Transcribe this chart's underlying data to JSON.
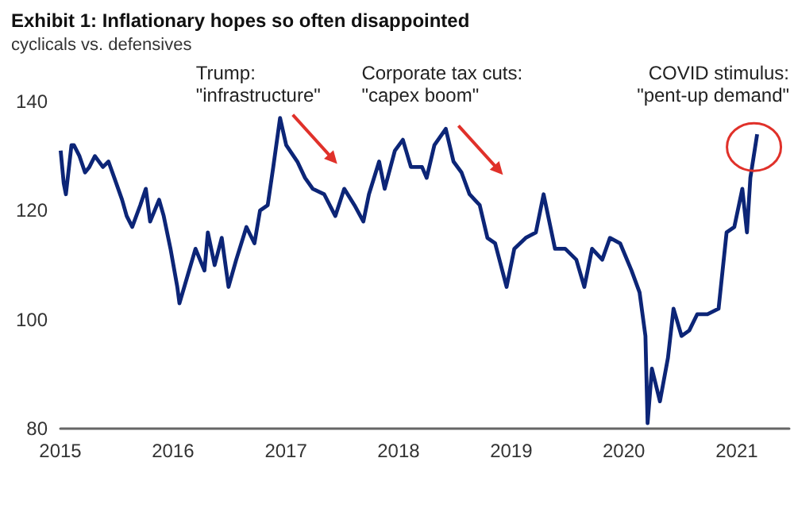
{
  "chart_data": {
    "type": "line",
    "title": "Exhibit 1: Inflationary hopes so often disappointed",
    "subtitle": "cyclicals vs. defensives",
    "x": [
      "2015-01-02",
      "2015-01-12",
      "2015-01-19",
      "2015-02-06",
      "2015-02-14",
      "2015-03-04",
      "2015-03-22",
      "2015-04-05",
      "2015-04-23",
      "2015-05-19",
      "2015-06-06",
      "2015-06-25",
      "2015-07-20",
      "2015-08-04",
      "2015-08-22",
      "2015-09-17",
      "2015-10-05",
      "2015-10-19",
      "2015-11-17",
      "2015-12-02",
      "2015-12-24",
      "2016-01-15",
      "2016-01-22",
      "2016-02-17",
      "2016-03-14",
      "2016-04-12",
      "2016-04-23",
      "2016-05-15",
      "2016-06-07",
      "2016-06-29",
      "2016-07-24",
      "2016-08-26",
      "2016-09-21",
      "2016-10-09",
      "2016-11-03",
      "2016-11-21",
      "2016-12-13",
      "2017-01-02",
      "2017-02-07",
      "2017-03-04",
      "2017-03-29",
      "2017-05-05",
      "2017-06-10",
      "2017-07-09",
      "2017-08-11",
      "2017-09-09",
      "2017-09-27",
      "2017-10-30",
      "2017-11-17",
      "2017-12-20",
      "2018-01-15",
      "2018-02-10",
      "2018-03-18",
      "2018-04-02",
      "2018-04-27",
      "2018-06-03",
      "2018-06-28",
      "2018-07-24",
      "2018-08-19",
      "2018-09-21",
      "2018-10-16",
      "2018-11-10",
      "2018-12-17",
      "2019-01-11",
      "2019-02-17",
      "2019-03-22",
      "2019-04-16",
      "2019-05-23",
      "2019-06-25",
      "2019-07-31",
      "2019-08-26",
      "2019-09-20",
      "2019-10-23",
      "2019-11-17",
      "2019-12-20",
      "2020-01-26",
      "2020-02-21",
      "2020-03-11",
      "2020-03-18",
      "2020-04-01",
      "2020-04-27",
      "2020-05-23",
      "2020-06-10",
      "2020-07-06",
      "2020-07-31",
      "2020-08-26",
      "2020-09-28",
      "2020-11-03",
      "2020-11-29",
      "2020-12-24",
      "2021-01-19",
      "2021-02-03",
      "2021-02-14",
      "2021-03-08"
    ],
    "series": [
      {
        "color": "#0c2577",
        "values": [
          131,
          125,
          123,
          132,
          132,
          130,
          127,
          128,
          130,
          128,
          129,
          126,
          122,
          119,
          117,
          121,
          124,
          118,
          122,
          119,
          113,
          106,
          103,
          108,
          113,
          109,
          116,
          110,
          115,
          106,
          111,
          117,
          114,
          120,
          121,
          128,
          137,
          132,
          129,
          126,
          124,
          123,
          119,
          124,
          121,
          118,
          123,
          129,
          124,
          131,
          133,
          128,
          128,
          126,
          132,
          135,
          129,
          127,
          123,
          121,
          115,
          114,
          106,
          113,
          115,
          116,
          123,
          113,
          113,
          111,
          106,
          113,
          111,
          115,
          114,
          109,
          105,
          97,
          81,
          91,
          85,
          93,
          102,
          97,
          98,
          101,
          101,
          102,
          116,
          117,
          124,
          116,
          126,
          134
        ]
      }
    ],
    "xlim": [
      "2015-01-01",
      "2021-06-20"
    ],
    "xticks": [
      "2015",
      "2016",
      "2017",
      "2018",
      "2019",
      "2020",
      "2021"
    ],
    "ylim": [
      80,
      140
    ],
    "yticks": [
      80,
      100,
      120,
      140
    ],
    "annotations": [
      {
        "text": "Trump:\n\"infrastructure\"",
        "x": "2016-12-13",
        "y": 137
      },
      {
        "text": "Corporate tax cuts:\n\"capex boom\"",
        "x": "2018-06-03",
        "y": 135
      },
      {
        "text": "COVID stimulus:\n\"pent-up demand\"",
        "x": "2021-03-08",
        "y": 134
      }
    ]
  }
}
